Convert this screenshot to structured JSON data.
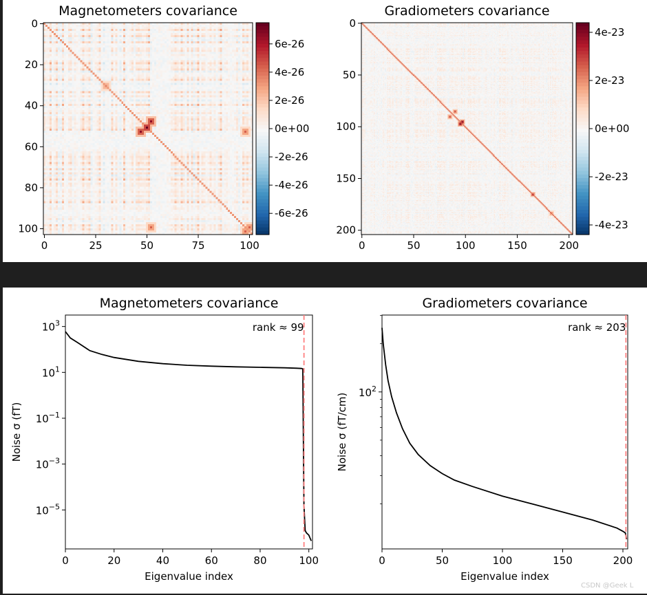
{
  "watermark": "CSDN @Geek L",
  "colors": {
    "cmap_neg": "#053061",
    "cmap_mid": "#f7f7f7",
    "cmap_pos": "#67001f",
    "rank_line": "#ff7f7f",
    "curve": "#000000"
  },
  "chart_data": [
    {
      "type": "heatmap",
      "title": "Magnetometers covariance",
      "n": 102,
      "x_ticks": [
        "0",
        "25",
        "50",
        "75",
        "100"
      ],
      "x_tick_values": [
        0,
        25,
        50,
        75,
        100
      ],
      "y_ticks": [
        "0",
        "20",
        "40",
        "60",
        "80",
        "100"
      ],
      "y_tick_values": [
        0,
        20,
        40,
        60,
        80,
        100
      ],
      "colorbar": {
        "range": [
          -7.5e-26,
          7.5e-26
        ],
        "tick_labels": [
          "6e-26",
          "4e-26",
          "2e-26",
          "0e+00",
          "-2e-26",
          "-4e-26",
          "-6e-26"
        ],
        "tick_values": [
          6e-26,
          4e-26,
          2e-26,
          0,
          -2e-26,
          -4e-26,
          -6e-26
        ]
      },
      "hot_blocks": [
        [
          47,
          52,
          0.9
        ],
        [
          50,
          50,
          1.0
        ],
        [
          98,
          100,
          0.6
        ],
        [
          52,
          98,
          0.6
        ],
        [
          30,
          30,
          0.5
        ]
      ]
    },
    {
      "type": "heatmap",
      "title": "Gradiometers covariance",
      "n": 204,
      "x_ticks": [
        "0",
        "50",
        "100",
        "150",
        "200"
      ],
      "x_tick_values": [
        0,
        50,
        100,
        150,
        200
      ],
      "y_ticks": [
        "0",
        "50",
        "100",
        "150",
        "200"
      ],
      "y_tick_values": [
        0,
        50,
        100,
        150,
        200
      ],
      "colorbar": {
        "range": [
          -4.4e-23,
          4.4e-23
        ],
        "tick_labels": [
          "4e-23",
          "2e-23",
          "0e+00",
          "-2e-23",
          "-4e-23"
        ],
        "tick_values": [
          4e-23,
          2e-23,
          0,
          -2e-23,
          -4e-23
        ]
      },
      "hot_blocks": [
        [
          95,
          97,
          1.0
        ],
        [
          85,
          90,
          0.7
        ],
        [
          165,
          165,
          0.8
        ],
        [
          183,
          183,
          0.6
        ]
      ]
    },
    {
      "type": "line",
      "title": "Magnetometers covariance",
      "xlabel": "Eigenvalue index",
      "ylabel": "Noise σ (fT)",
      "yscale": "log",
      "xlim": [
        0,
        101.5
      ],
      "ylim_log10": [
        -6.7,
        3.5
      ],
      "x_ticks": [
        "0",
        "20",
        "40",
        "60",
        "80",
        "100"
      ],
      "x_tick_values": [
        0,
        20,
        40,
        60,
        80,
        100
      ],
      "y_ticks": [
        {
          "base": "10",
          "exp": "3",
          "value": 3
        },
        {
          "base": "10",
          "exp": "1",
          "value": 1
        },
        {
          "base": "10",
          "exp": "−1",
          "value": -1
        },
        {
          "base": "10",
          "exp": "−3",
          "value": -3
        },
        {
          "base": "10",
          "exp": "−5",
          "value": -5
        }
      ],
      "series": [
        {
          "name": "noise sigma",
          "x": [
            0,
            2,
            5,
            10,
            15,
            20,
            30,
            40,
            50,
            60,
            70,
            80,
            90,
            95,
            97,
            97.5,
            98,
            98.5,
            99,
            100,
            101
          ],
          "log10_y": [
            2.78,
            2.5,
            2.3,
            1.95,
            1.78,
            1.65,
            1.48,
            1.38,
            1.31,
            1.27,
            1.24,
            1.22,
            1.2,
            1.18,
            1.17,
            1.15,
            -4.8,
            -5.9,
            -6.0,
            -6.1,
            -6.35
          ]
        }
      ],
      "rank_line": {
        "x": 98,
        "label": "rank ≈ 99"
      }
    },
    {
      "type": "line",
      "title": "Gradiometers covariance",
      "xlabel": "Eigenvalue index",
      "ylabel": "Noise σ (fT/cm)",
      "yscale": "log",
      "xlim": [
        0,
        204
      ],
      "ylim_log10": [
        1.02,
        2.48
      ],
      "x_ticks": [
        "0",
        "50",
        "100",
        "150",
        "200"
      ],
      "x_tick_values": [
        0,
        50,
        100,
        150,
        200
      ],
      "y_ticks": [
        {
          "base": "10",
          "exp": "2",
          "value": 2
        }
      ],
      "series": [
        {
          "name": "noise sigma",
          "x": [
            0,
            1,
            3,
            5,
            8,
            12,
            17,
            23,
            30,
            40,
            50,
            60,
            75,
            100,
            125,
            150,
            175,
            195,
            200,
            202,
            203
          ],
          "log10_y": [
            2.4,
            2.3,
            2.17,
            2.07,
            1.97,
            1.87,
            1.77,
            1.68,
            1.61,
            1.54,
            1.49,
            1.45,
            1.41,
            1.35,
            1.3,
            1.25,
            1.2,
            1.15,
            1.13,
            1.12,
            1.08
          ]
        }
      ],
      "rank_line": {
        "x": 202.5,
        "label": "rank ≈ 203"
      }
    }
  ]
}
